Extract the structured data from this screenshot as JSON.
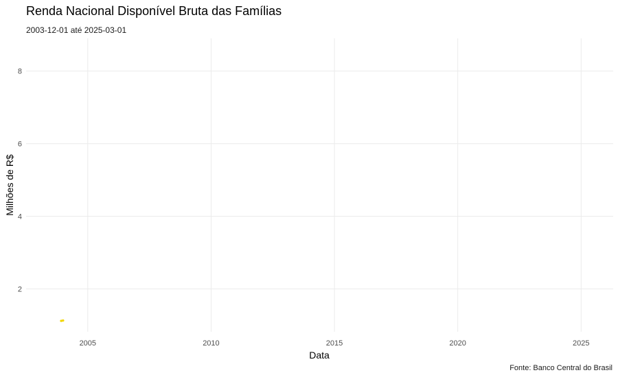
{
  "chart_data": {
    "type": "line",
    "title": "Renda Nacional Disponível Bruta das Famílias",
    "subtitle": "2003-12-01 até 2025-03-01",
    "xlabel": "Data",
    "ylabel": "Milhões de R$",
    "caption": "Fonte: Banco Central do Brasil",
    "x_ticks": [
      2005,
      2010,
      2015,
      2020,
      2025
    ],
    "y_ticks": [
      2,
      4,
      6,
      8
    ],
    "xlim": [
      2002.5,
      2026.3
    ],
    "ylim": [
      0.82,
      8.9
    ],
    "grid": true,
    "legend": "none",
    "series": [
      {
        "color": "#f2d600",
        "x": [
          2003.92,
          2004.0
        ],
        "y": [
          1.12,
          1.13
        ]
      }
    ]
  }
}
